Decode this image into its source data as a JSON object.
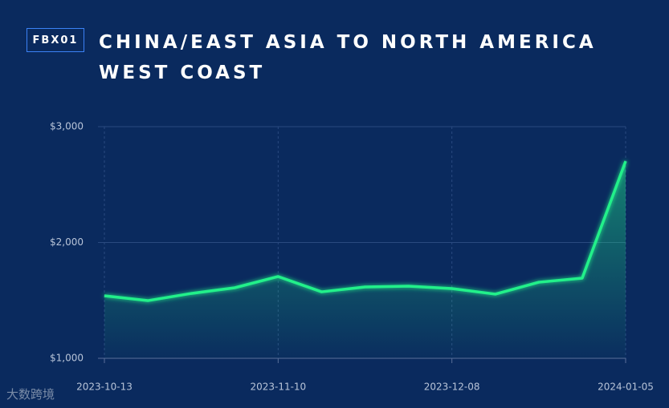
{
  "badge": "FBX01",
  "watermark": "大数跨境",
  "chart_data": {
    "type": "line",
    "title": "CHINA/EAST ASIA TO NORTH AMERICA WEST COAST",
    "x": [
      "2023-10-13",
      "2023-10-20",
      "2023-10-27",
      "2023-11-03",
      "2023-11-10",
      "2023-11-17",
      "2023-11-24",
      "2023-12-01",
      "2023-12-08",
      "2023-12-15",
      "2023-12-22",
      "2023-12-29",
      "2024-01-05"
    ],
    "series": [
      {
        "name": "FBX01",
        "color": "#22f08a",
        "values": [
          1540,
          1498,
          1560,
          1609,
          1706,
          1574,
          1616,
          1623,
          1602,
          1554,
          1657,
          1692,
          2702
        ]
      }
    ],
    "xlim": [
      "2023-10-13",
      "2024-01-05"
    ],
    "xticks": [
      "2023-10-13",
      "2023-11-10",
      "2023-12-08",
      "2024-01-05"
    ],
    "ylim": [
      1000,
      3000
    ],
    "yticks": [
      {
        "value": 1000,
        "label": "$1,000"
      },
      {
        "value": 2000,
        "label": "$2,000"
      },
      {
        "value": 3000,
        "label": "$3,000"
      }
    ],
    "grid": true
  }
}
